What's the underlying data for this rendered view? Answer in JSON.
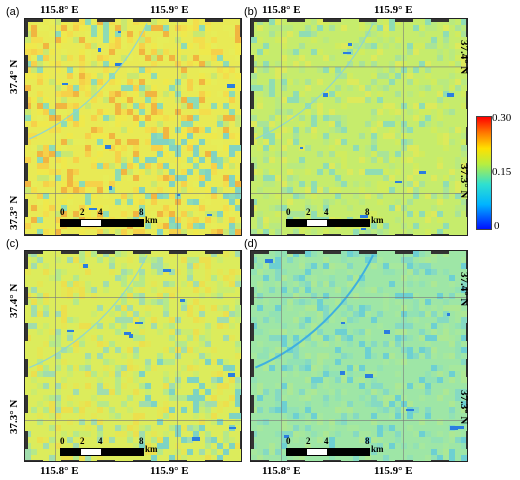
{
  "panels": [
    {
      "id": "a",
      "label": "(a)",
      "lat_top": "37.4° N",
      "lat_bottom": "37.3° N",
      "lon_left": "115.8° E",
      "lon_right": "115.9° E",
      "base": "#e8ea55",
      "tone": "yellow"
    },
    {
      "id": "b",
      "label": "(b)",
      "lat_top": "37.4° N",
      "lat_bottom": "37.3° N",
      "lon_left": "115.8° E",
      "lon_right": "115.9° E",
      "base": "#c6ec6c",
      "tone": "light-green"
    },
    {
      "id": "c",
      "label": "(c)",
      "lat_top": "37.4° N",
      "lat_bottom": "37.3° N",
      "lon_left": "115.8° E",
      "lon_right": "115.9° E",
      "base": "#dcec5c",
      "tone": "yellow-green"
    },
    {
      "id": "d",
      "label": "(d)",
      "lat_top": "37.4° N",
      "lat_bottom": "37.3° N",
      "lon_left": "115.8° E",
      "lon_right": "115.9° E",
      "base": "#9ee6a6",
      "tone": "cyan-green"
    }
  ],
  "scalebar": {
    "ticks": [
      "0",
      "2",
      "4",
      "8"
    ],
    "unit": "km"
  },
  "colorbar": {
    "max": "0.30",
    "mid": "0.15",
    "min": "0"
  },
  "colors": {
    "high": "#ff0000",
    "mid": "#ffe000",
    "low": "#0010ff"
  }
}
